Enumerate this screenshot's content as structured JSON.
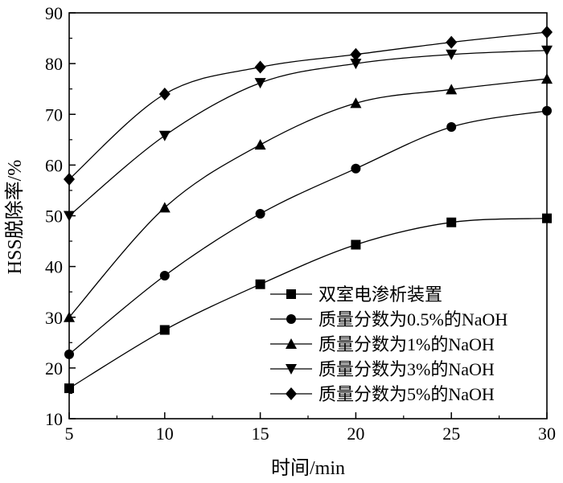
{
  "chart_data": {
    "type": "line",
    "xlabel": "时间/min",
    "ylabel": "HSS脱除率/%",
    "xlim": [
      5,
      30
    ],
    "ylim": [
      10,
      90
    ],
    "x": [
      5,
      10,
      15,
      20,
      25,
      30
    ],
    "x_ticks": [
      "5",
      "10",
      "15",
      "20",
      "25",
      "30"
    ],
    "y_ticks": [
      "10",
      "20",
      "30",
      "40",
      "50",
      "60",
      "70",
      "80",
      "90"
    ],
    "grid": false,
    "legend_position": "bottom-right",
    "series": [
      {
        "name": "双室电渗析装置",
        "marker": "square",
        "values": [
          16,
          27.5,
          36.5,
          44.3,
          48.7,
          49.5
        ]
      },
      {
        "name": "质量分数为0.5%的NaOH",
        "marker": "circle",
        "values": [
          22.7,
          38.2,
          50.4,
          59.3,
          67.5,
          70.7
        ]
      },
      {
        "name": "质量分数为1%的NaOH",
        "marker": "triangle-up",
        "values": [
          30,
          51.6,
          64,
          72.2,
          74.9,
          77
        ]
      },
      {
        "name": "质量分数为3%的NaOH",
        "marker": "triangle-down",
        "values": [
          50,
          65.8,
          76.2,
          80,
          81.8,
          82.6
        ]
      },
      {
        "name": "质量分数为5%的NaOH",
        "marker": "diamond",
        "values": [
          57.2,
          74,
          79.3,
          81.8,
          84.2,
          86.2
        ]
      }
    ]
  }
}
